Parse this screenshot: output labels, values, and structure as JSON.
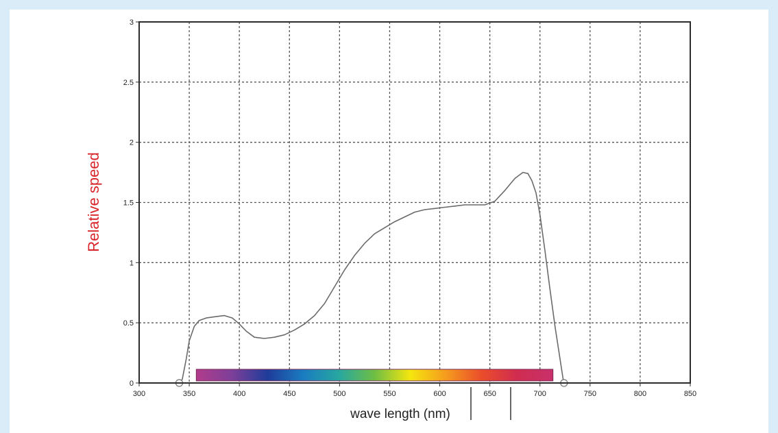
{
  "chart_data": {
    "type": "line",
    "xlabel": "wave length (nm)",
    "ylabel": "Relative speed",
    "xlim": [
      300,
      850
    ],
    "ylim": [
      0,
      3
    ],
    "xticks": [
      300,
      350,
      400,
      450,
      500,
      550,
      600,
      650,
      700,
      750,
      800,
      850
    ],
    "yticks": [
      0,
      0.5,
      1,
      1.5,
      2,
      2.5,
      3
    ],
    "ytick_labels": [
      "0",
      "0.5",
      "1",
      "1.5",
      "2",
      "2.5",
      "3"
    ],
    "grid": true,
    "spectrum_bar": {
      "x_range": [
        357,
        713
      ]
    },
    "markers": [
      340,
      724
    ],
    "series": [
      {
        "color": "#6a6a6a",
        "x": [
          340,
          343,
          347,
          350,
          355,
          360,
          367,
          375,
          385,
          393,
          400,
          407,
          415,
          425,
          435,
          445,
          455,
          465,
          475,
          485,
          495,
          505,
          515,
          525,
          535,
          545,
          555,
          565,
          575,
          585,
          595,
          605,
          615,
          625,
          635,
          645,
          655,
          665,
          675,
          683,
          688,
          692,
          696,
          700,
          705,
          710,
          715,
          720,
          723,
          724
        ],
        "y": [
          0,
          0.03,
          0.2,
          0.35,
          0.47,
          0.52,
          0.54,
          0.55,
          0.56,
          0.54,
          0.49,
          0.43,
          0.38,
          0.37,
          0.38,
          0.4,
          0.44,
          0.49,
          0.56,
          0.66,
          0.8,
          0.94,
          1.06,
          1.16,
          1.24,
          1.29,
          1.34,
          1.38,
          1.42,
          1.44,
          1.45,
          1.46,
          1.47,
          1.48,
          1.48,
          1.48,
          1.51,
          1.6,
          1.7,
          1.75,
          1.74,
          1.68,
          1.58,
          1.4,
          1.1,
          0.78,
          0.47,
          0.2,
          0.04,
          0
        ]
      }
    ]
  },
  "spectrum_colors": [
    "#b23c8c",
    "#7d3f99",
    "#1f3c9a",
    "#1a7cc0",
    "#27a7a0",
    "#6fbe44",
    "#f5e60f",
    "#f59b1e",
    "#ea4d2a",
    "#d02c50",
    "#c8316b"
  ],
  "colors": {
    "axis": "#2b2b2b",
    "grid": "#555555",
    "curve": "#6a6a6a",
    "ylabel": "#d9262b",
    "background_border": "#d9ecf7"
  }
}
